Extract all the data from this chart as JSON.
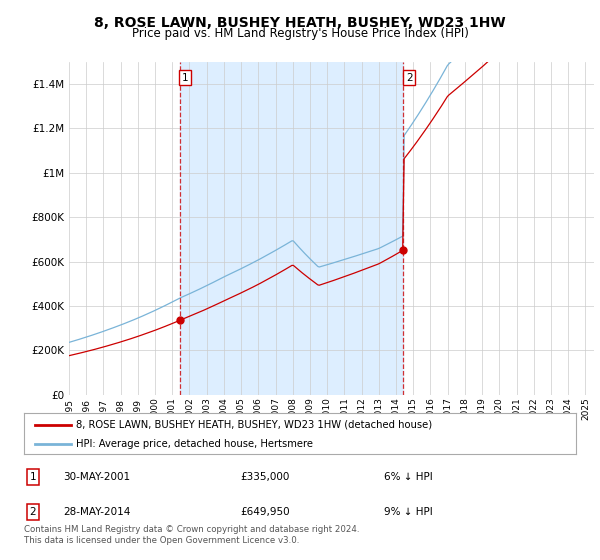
{
  "title": "8, ROSE LAWN, BUSHEY HEATH, BUSHEY, WD23 1HW",
  "subtitle": "Price paid vs. HM Land Registry's House Price Index (HPI)",
  "legend_line1": "8, ROSE LAWN, BUSHEY HEATH, BUSHEY, WD23 1HW (detached house)",
  "legend_line2": "HPI: Average price, detached house, Hertsmere",
  "sale1_date": "30-MAY-2001",
  "sale1_price": "£335,000",
  "sale1_hpi": "6% ↓ HPI",
  "sale2_date": "28-MAY-2014",
  "sale2_price": "£649,950",
  "sale2_hpi": "9% ↓ HPI",
  "footnote": "Contains HM Land Registry data © Crown copyright and database right 2024.\nThis data is licensed under the Open Government Licence v3.0.",
  "hpi_color": "#7ab4d8",
  "price_color": "#cc0000",
  "marker_color": "#cc0000",
  "sale1_year": 2001.42,
  "sale2_year": 2014.42,
  "ylim_max": 1500000,
  "background_color": "#ffffff",
  "grid_color": "#cccccc",
  "shade_color": "#ddeeff"
}
